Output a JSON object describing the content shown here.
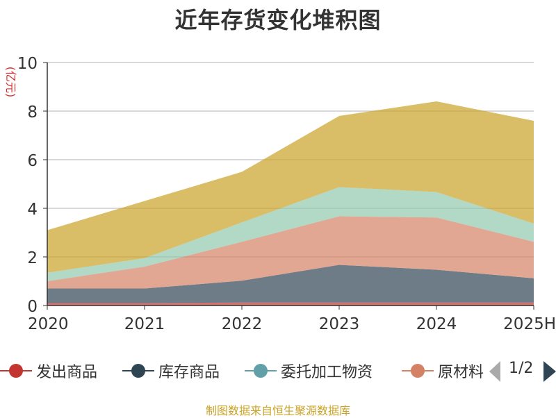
{
  "chart_data": {
    "type": "area",
    "stacked": true,
    "title": "近年存货变化堆积图",
    "ylabel": "(亿元)",
    "xlabel": "",
    "categories": [
      "2020",
      "2021",
      "2022",
      "2023",
      "2024",
      "2025H"
    ],
    "ylim": [
      0,
      10
    ],
    "yticks": [
      0,
      2,
      4,
      6,
      8,
      10
    ],
    "grid": true,
    "legend_position": "bottom",
    "series": [
      {
        "name": "发出商品",
        "color": "#c23531",
        "values": [
          0.1,
          0.1,
          0.12,
          0.12,
          0.12,
          0.12
        ]
      },
      {
        "name": "库存商品",
        "color": "#2f4554",
        "values": [
          0.6,
          0.6,
          0.9,
          1.55,
          1.35,
          1.0
        ]
      },
      {
        "name": "委托加工物资",
        "color": "#61a0a8",
        "values": [
          0.0,
          0.0,
          0.0,
          0.0,
          0.0,
          0.0
        ]
      },
      {
        "name": "原材料",
        "color": "#d48265",
        "values": [
          0.3,
          0.9,
          1.6,
          2.0,
          2.15,
          1.5
        ]
      },
      {
        "name": "",
        "color": "#91c7ae",
        "values": [
          0.35,
          0.35,
          0.8,
          1.2,
          1.05,
          0.75
        ]
      },
      {
        "name": "",
        "color": "#c9a227",
        "values": [
          1.75,
          2.35,
          2.08,
          2.93,
          3.73,
          4.23
        ]
      }
    ]
  },
  "legend": {
    "items": [
      "发出商品",
      "库存商品",
      "委托加工物资",
      "原材料"
    ],
    "page_text": "1/2"
  },
  "source_note": "制图数据来自恒生聚源数据库",
  "colors": {
    "axis": "#333333",
    "grid": "#cccccc",
    "ylabel": "#d43030",
    "source": "#c9a227",
    "pager_inactive": "#aaaaaa",
    "pager_active": "#2f4554"
  }
}
